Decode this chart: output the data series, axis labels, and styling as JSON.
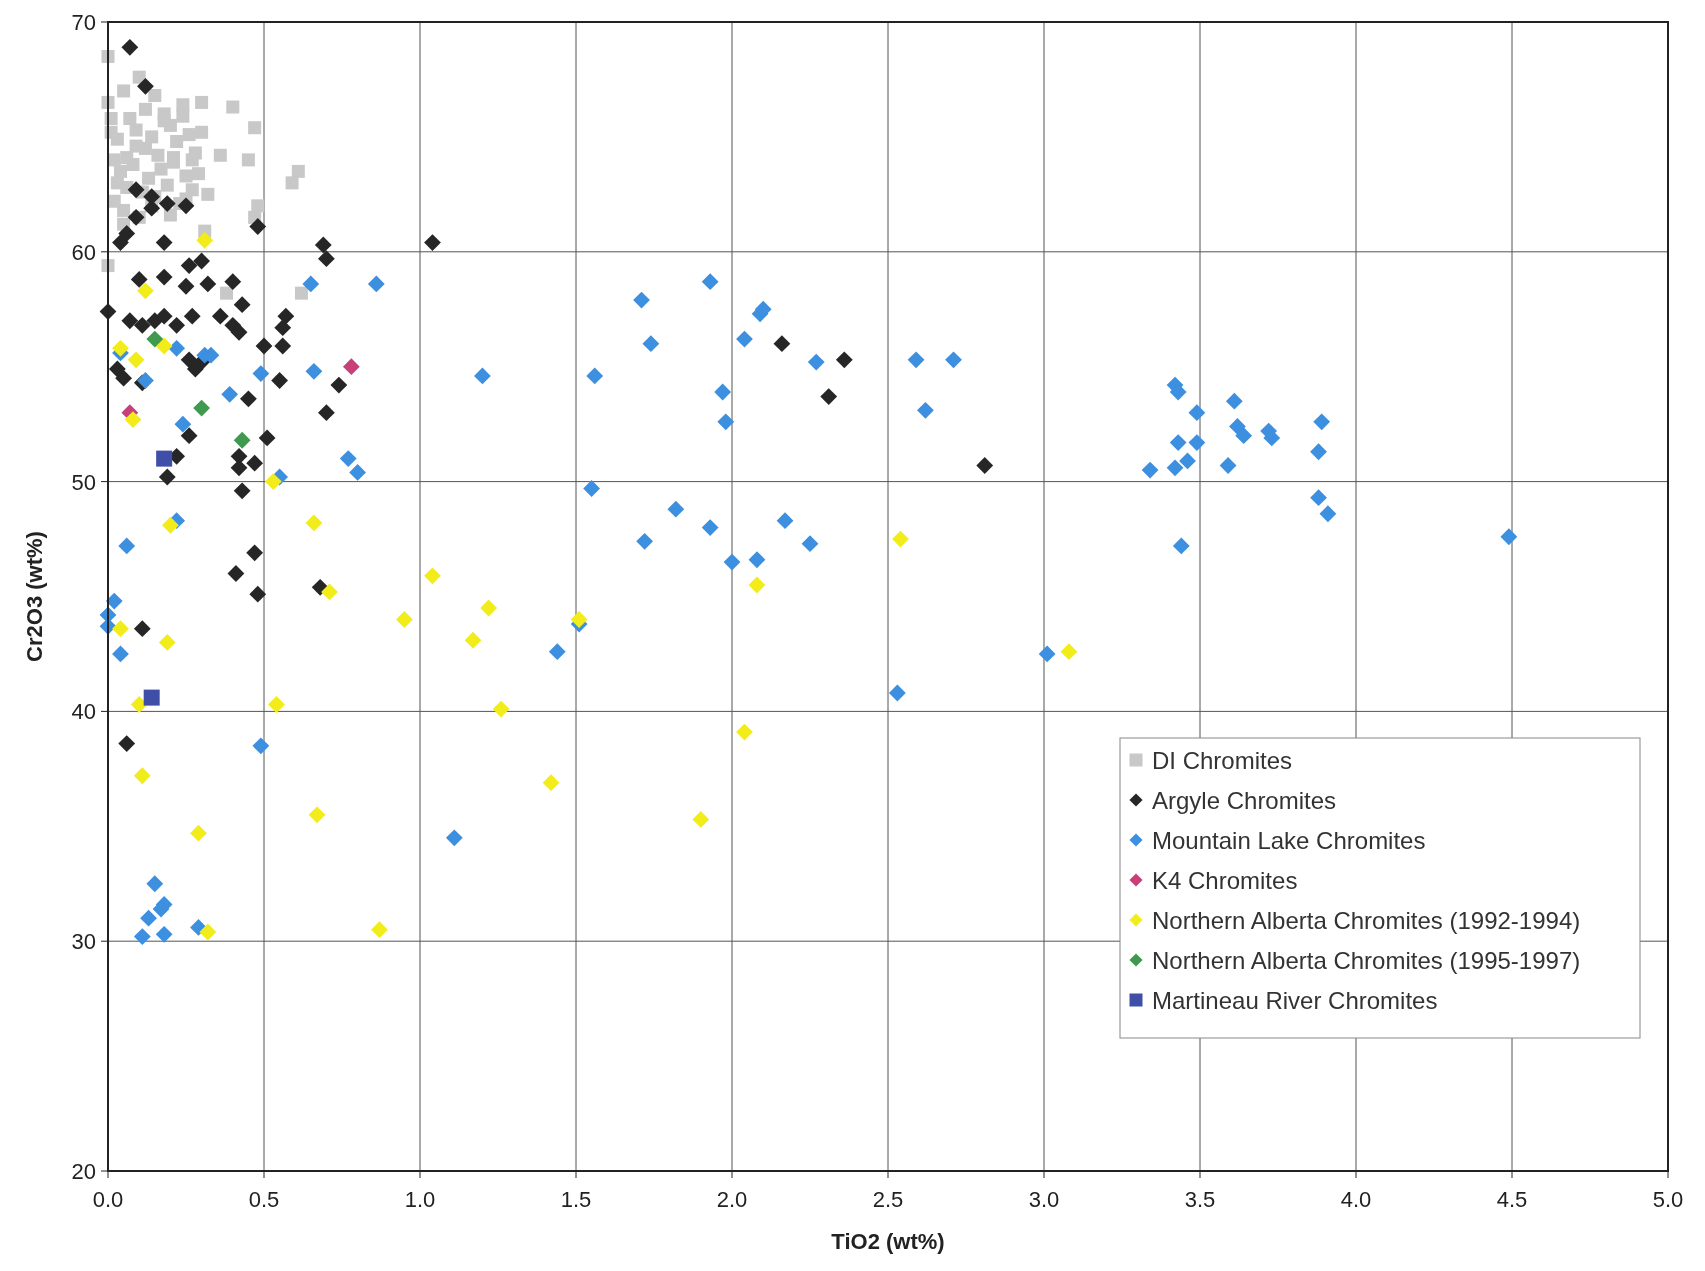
{
  "chart_data": {
    "type": "scatter",
    "xlabel": "TiO2 (wt%)",
    "ylabel": "Cr2O3 (wt%)",
    "xlim": [
      0,
      5
    ],
    "ylim": [
      20,
      70
    ],
    "xticks": [
      {
        "value": 0,
        "label": "0.0"
      },
      {
        "value": 0.5,
        "label": "0.5"
      },
      {
        "value": 1,
        "label": "1.0"
      },
      {
        "value": 1.5,
        "label": "1.5"
      },
      {
        "value": 2,
        "label": "2.0"
      },
      {
        "value": 2.5,
        "label": "2.5"
      },
      {
        "value": 3,
        "label": "3.0"
      },
      {
        "value": 3.5,
        "label": "3.5"
      },
      {
        "value": 4,
        "label": "4.0"
      },
      {
        "value": 4.5,
        "label": "4.5"
      },
      {
        "value": 5,
        "label": "5.0"
      }
    ],
    "yticks": [
      20,
      30,
      40,
      50,
      60,
      70
    ],
    "grid": true,
    "legend": "bottom right",
    "series": [
      {
        "name": "DI Chromites",
        "color": "#c8c8c8",
        "marker": "square",
        "x": [
          0,
          0,
          0.01,
          0.02,
          0.03,
          0.05,
          0.07,
          0.09,
          0.1,
          0.12,
          0.14,
          0.16,
          0.18,
          0.2,
          0.22,
          0.24,
          0.26,
          0.28,
          0.3,
          0.02,
          0.04,
          0.06,
          0.08,
          0.11,
          0.13,
          0.15,
          0.17,
          0.19,
          0.21,
          0.23,
          0.25,
          0.27,
          0.29,
          0.01,
          0.03,
          0.06,
          0.09,
          0.12,
          0.15,
          0.18,
          0.21,
          0.24,
          0.27,
          0.3,
          0.05,
          0.1,
          0.14,
          0.2,
          0.25,
          0.32,
          0.4,
          0.47,
          0.61,
          0.59,
          0.48,
          0.47,
          0.38,
          0.62,
          0,
          0.31,
          0.05,
          0.45,
          0.36
        ],
        "values": [
          68.5,
          66.5,
          65.2,
          64.0,
          63.0,
          67.0,
          65.8,
          64.6,
          67.6,
          66.2,
          65.0,
          64.2,
          66.0,
          65.5,
          64.8,
          66.4,
          65.1,
          64.3,
          66.5,
          62.2,
          63.5,
          62.8,
          63.8,
          62.6,
          63.2,
          62.4,
          63.6,
          62.9,
          63.9,
          62.1,
          63.3,
          62.7,
          63.4,
          65.8,
          64.9,
          64.1,
          65.3,
          64.5,
          66.8,
          65.7,
          64.1,
          65.9,
          64.0,
          65.2,
          61.8,
          61.5,
          62.0,
          61.6,
          62.3,
          62.5,
          66.3,
          65.4,
          63.5,
          63.0,
          62.0,
          61.5,
          58.2,
          58.2,
          59.4,
          60.9,
          61.2,
          64.0,
          64.2
        ]
      },
      {
        "name": "Argyle Chromites",
        "color": "#262626",
        "marker": "diamond",
        "x": [
          0.07,
          0.12,
          0,
          0.09,
          0.14,
          0.14,
          0.19,
          0.25,
          0.09,
          0.06,
          0.04,
          0.18,
          0.48,
          0.69,
          0.7,
          1.04,
          0.3,
          0.26,
          0.1,
          0.18,
          0.4,
          0.25,
          0.32,
          0.43,
          0.57,
          0.07,
          0.11,
          0.15,
          0.18,
          0.22,
          0.27,
          0.36,
          0.4,
          0.42,
          0.56,
          0.5,
          0.56,
          0.03,
          0.05,
          0.11,
          0.28,
          0.3,
          0.26,
          0.55,
          0.74,
          0.7,
          0.45,
          0.26,
          0.22,
          0.51,
          0.42,
          0.42,
          0.43,
          0.19,
          0.47,
          0.47,
          0.41,
          0.48,
          0.68,
          0.11,
          0.06,
          2.16,
          2.31,
          2.36,
          2.81
        ],
        "values": [
          68.9,
          67.2,
          57.4,
          61.5,
          62.4,
          61.9,
          62.1,
          62.0,
          62.7,
          60.8,
          60.4,
          60.4,
          61.1,
          60.3,
          59.7,
          60.4,
          59.6,
          59.4,
          58.8,
          58.9,
          58.7,
          58.5,
          58.6,
          57.7,
          57.2,
          57.0,
          56.8,
          57.0,
          57.2,
          56.8,
          57.2,
          57.2,
          56.8,
          56.5,
          56.7,
          55.9,
          55.9,
          54.9,
          54.5,
          54.3,
          54.9,
          55.2,
          55.3,
          54.4,
          54.2,
          53.0,
          53.6,
          52.0,
          51.1,
          51.9,
          51.1,
          50.6,
          49.6,
          50.2,
          50.8,
          46.9,
          46.0,
          45.1,
          45.4,
          43.6,
          38.6,
          56.0,
          53.7,
          55.3,
          50.7
        ]
      },
      {
        "name": "Mountain Lake Chromites",
        "color": "#3d8fe0",
        "marker": "diamond",
        "x": [
          0.65,
          0.86,
          0.49,
          0.66,
          0.12,
          0.04,
          0.22,
          0.31,
          0.33,
          0.39,
          0.24,
          0.55,
          0.77,
          0.8,
          0.22,
          0.06,
          0.02,
          0,
          0,
          0.04,
          0.49,
          0.15,
          0.13,
          0.18,
          0.17,
          0.11,
          0.18,
          0.29,
          1.11,
          1.2,
          1.56,
          1.55,
          1.44,
          1.51,
          1.71,
          1.74,
          1.93,
          1.97,
          1.98,
          2.09,
          2.1,
          2.04,
          2.27,
          1.72,
          1.82,
          1.93,
          2,
          2.08,
          2.17,
          2.25,
          2.59,
          2.62,
          2.71,
          2.53,
          3.01,
          3.34,
          3.42,
          3.43,
          3.49,
          3.43,
          3.42,
          3.46,
          3.49,
          3.61,
          3.62,
          3.64,
          3.72,
          3.73,
          3.59,
          3.89,
          3.88,
          3.88,
          3.91,
          3.44,
          4.49
        ],
        "values": [
          58.6,
          58.6,
          54.7,
          54.8,
          54.4,
          55.6,
          55.8,
          55.5,
          55.5,
          53.8,
          52.5,
          50.2,
          51.0,
          50.4,
          48.3,
          47.2,
          44.8,
          44.2,
          43.7,
          42.5,
          38.5,
          32.5,
          31.0,
          31.6,
          31.4,
          30.2,
          30.3,
          30.6,
          34.5,
          54.6,
          54.6,
          49.7,
          42.6,
          43.8,
          57.9,
          56.0,
          58.7,
          53.9,
          52.6,
          57.3,
          57.5,
          56.2,
          55.2,
          47.4,
          48.8,
          48.0,
          46.5,
          46.6,
          48.3,
          47.3,
          55.3,
          53.1,
          55.3,
          40.8,
          42.5,
          50.5,
          54.2,
          53.9,
          53.0,
          51.7,
          50.6,
          50.9,
          51.7,
          53.5,
          52.4,
          52.0,
          52.2,
          51.9,
          50.7,
          52.6,
          51.3,
          49.3,
          48.6,
          47.2,
          47.6
        ]
      },
      {
        "name": "K4 Chromites",
        "color": "#c8407a",
        "marker": "diamond",
        "x": [
          0.07,
          0.78
        ],
        "values": [
          53.0,
          55.0
        ]
      },
      {
        "name": "Northern Alberta Chromites (1992-1994)",
        "color": "#f2ec1a",
        "marker": "diamond",
        "x": [
          0.31,
          0.12,
          0.04,
          0.09,
          0.18,
          0.08,
          0.2,
          0.53,
          0.66,
          0.71,
          1.04,
          0.95,
          1.17,
          1.22,
          1.26,
          1.51,
          1.42,
          1.9,
          2.04,
          2.08,
          2.54,
          3.08,
          0.04,
          0.19,
          0.1,
          0.11,
          0.29,
          0.67,
          0.32,
          0.87,
          0.54
        ],
        "values": [
          60.5,
          58.3,
          55.8,
          55.3,
          55.9,
          52.7,
          48.1,
          50.0,
          48.2,
          45.2,
          45.9,
          44.0,
          43.1,
          44.5,
          40.1,
          44.0,
          36.9,
          35.3,
          39.1,
          45.5,
          47.5,
          42.6,
          43.6,
          43.0,
          40.3,
          37.2,
          34.7,
          35.5,
          30.4,
          30.5,
          40.3
        ]
      },
      {
        "name": "Northern Alberta Chromites (1995-1997)",
        "color": "#3f9a4f",
        "marker": "diamond",
        "x": [
          0.15,
          0.3,
          0.43
        ],
        "values": [
          56.2,
          53.2,
          51.8
        ]
      },
      {
        "name": "Martineau River Chromites",
        "color": "#3f4ea6",
        "marker": "square",
        "x": [
          0.18,
          0.14
        ],
        "values": [
          51.0,
          40.6
        ]
      }
    ]
  }
}
